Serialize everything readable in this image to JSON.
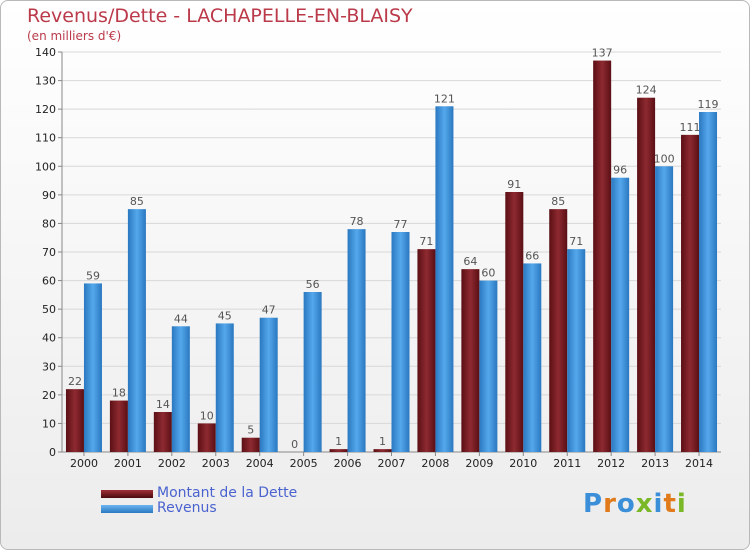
{
  "title": "Revenus/Dette - LACHAPELLE-EN-BLAISY",
  "subtitle": "(en milliers d'€)",
  "logo": "Proxiti",
  "colors": {
    "dette": "#7a1f24",
    "revenus": "#3d8fd6",
    "title": "#bb3a4a",
    "legend_text": "#4a63cf"
  },
  "legend": {
    "dette": "Montant de la Dette",
    "revenus": "Revenus"
  },
  "chart_data": {
    "type": "bar",
    "title": "Revenus/Dette - LACHAPELLE-EN-BLAISY",
    "ylabel": "(en milliers d'€)",
    "categories": [
      "2000",
      "2001",
      "2002",
      "2003",
      "2004",
      "2005",
      "2006",
      "2007",
      "2008",
      "2009",
      "2010",
      "2011",
      "2012",
      "2013",
      "2014"
    ],
    "series": [
      {
        "name": "Montant de la Dette",
        "values": [
          22,
          18,
          14,
          10,
          5,
          0,
          1,
          1,
          71,
          64,
          91,
          85,
          137,
          124,
          111
        ]
      },
      {
        "name": "Revenus",
        "values": [
          59,
          85,
          44,
          45,
          47,
          56,
          78,
          77,
          121,
          60,
          66,
          71,
          96,
          100,
          119
        ]
      }
    ],
    "ylim": [
      0,
      140
    ],
    "yticks": [
      0,
      10,
      20,
      30,
      40,
      50,
      60,
      70,
      80,
      90,
      100,
      110,
      120,
      130,
      140
    ],
    "grid": true,
    "legend_position": "bottom-left"
  }
}
